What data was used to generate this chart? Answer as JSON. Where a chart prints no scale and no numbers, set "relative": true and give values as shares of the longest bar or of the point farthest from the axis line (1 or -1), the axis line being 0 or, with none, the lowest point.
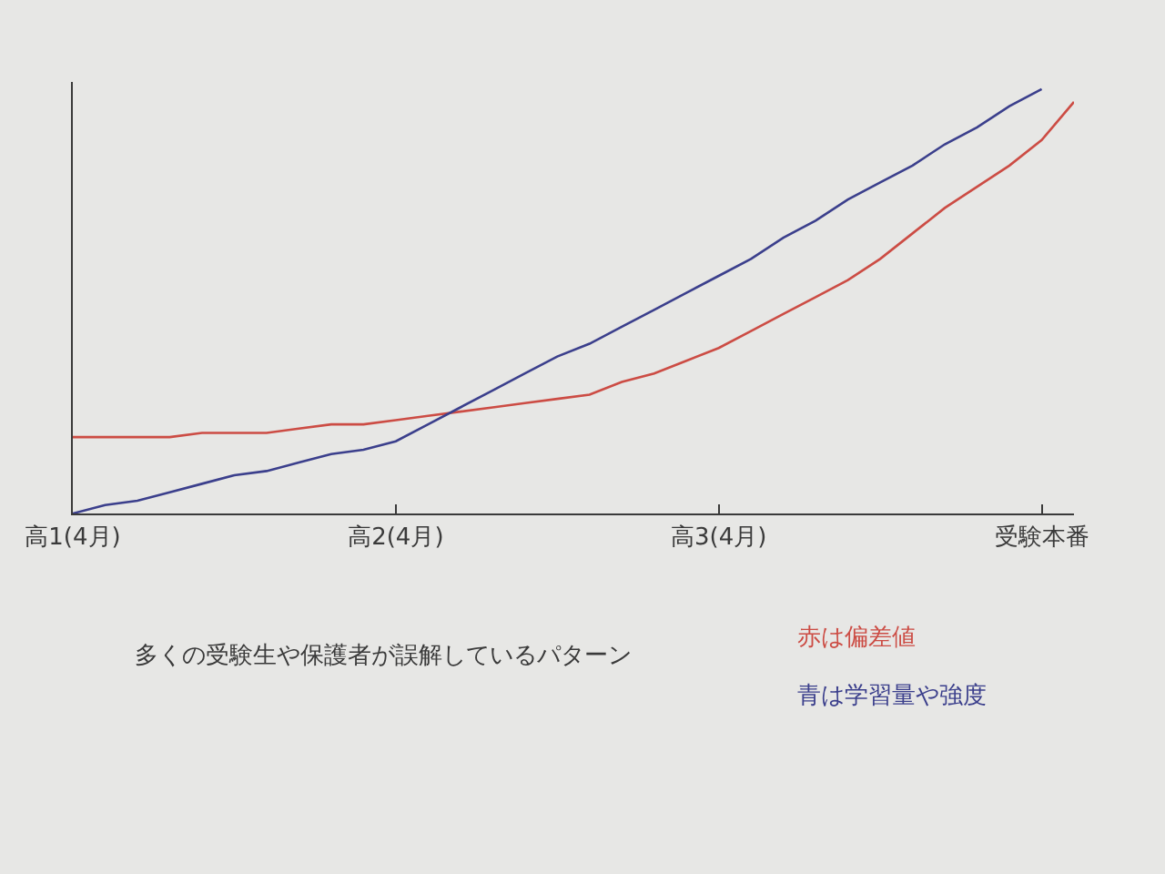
{
  "chart_data": {
    "type": "line",
    "relative": true,
    "categories": [
      "高1(4月)",
      null,
      null,
      null,
      null,
      null,
      null,
      null,
      null,
      null,
      "高2(4月)",
      null,
      null,
      null,
      null,
      null,
      null,
      null,
      null,
      null,
      "高3(4月)",
      null,
      null,
      null,
      null,
      null,
      null,
      null,
      null,
      null,
      "受験本番",
      null
    ],
    "series": [
      {
        "name": "赤は偏差値",
        "color": "#cc4c44",
        "values": [
          0.18,
          0.18,
          0.18,
          0.18,
          0.19,
          0.19,
          0.19,
          0.2,
          0.21,
          0.21,
          0.22,
          0.23,
          0.24,
          0.25,
          0.26,
          0.27,
          0.28,
          0.31,
          0.33,
          0.36,
          0.39,
          0.43,
          0.47,
          0.51,
          0.55,
          0.6,
          0.66,
          0.72,
          0.77,
          0.82,
          0.88,
          0.97
        ]
      },
      {
        "name": "青は学習量や強度",
        "color": "#3b3f8c",
        "values": [
          0,
          0.02,
          0.03,
          0.05,
          0.07,
          0.09,
          0.1,
          0.12,
          0.14,
          0.15,
          0.17,
          0.21,
          0.25,
          0.29,
          0.33,
          0.37,
          0.4,
          0.44,
          0.48,
          0.52,
          0.56,
          0.6,
          0.65,
          0.69,
          0.74,
          0.78,
          0.82,
          0.87,
          0.91,
          0.96,
          1,
          null
        ]
      }
    ],
    "annotations": [
      "多くの受験生や保護者が誤解しているパターン"
    ],
    "legend": "bottom right"
  }
}
